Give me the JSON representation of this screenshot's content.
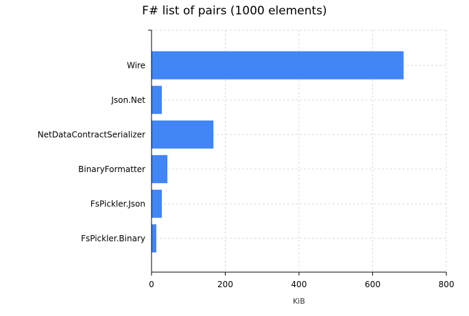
{
  "chart_data": {
    "type": "bar",
    "orientation": "horizontal",
    "title": "F# list of pairs (1000 elements)",
    "xlabel": "KiB",
    "ylabel": "",
    "categories": [
      "Wire",
      "Json.Net",
      "NetDataContractSerializer",
      "BinaryFormatter",
      "FsPickler.Json",
      "FsPickler.Binary"
    ],
    "values": [
      683,
      27,
      167,
      42,
      27,
      12
    ],
    "xlim": [
      0,
      800
    ],
    "xticks": [
      "0",
      "200",
      "400",
      "600",
      "800"
    ],
    "grid": true,
    "bar_color": "#4285f4"
  }
}
